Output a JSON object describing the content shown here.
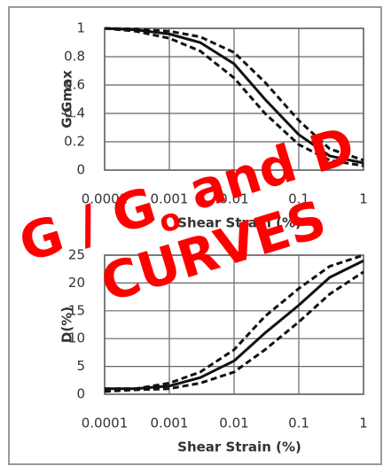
{
  "chart_data": [
    {
      "type": "line",
      "xscale": "log",
      "ylabel": "G/Gmax",
      "xlabel": "Shear Strain (%)",
      "x": [
        0.0001,
        0.0003,
        0.001,
        0.003,
        0.01,
        0.03,
        0.1,
        0.3,
        1
      ],
      "xlim": [
        0.0001,
        1
      ],
      "xticks": [
        0.0001,
        0.001,
        0.01,
        0.1,
        1
      ],
      "ylim": [
        0,
        1
      ],
      "yticks": [
        0,
        0.2,
        0.4,
        0.6,
        0.8,
        1
      ],
      "grid": true,
      "series": [
        {
          "color": "#111",
          "line_style": "dashed",
          "values": [
            1,
            0.995,
            0.98,
            0.94,
            0.83,
            0.62,
            0.35,
            0.15,
            0.07
          ]
        },
        {
          "color": "#111",
          "line_style": "solid",
          "values": [
            1,
            0.99,
            0.96,
            0.9,
            0.75,
            0.5,
            0.25,
            0.1,
            0.05
          ]
        },
        {
          "color": "#111",
          "line_style": "dashed",
          "values": [
            1,
            0.98,
            0.93,
            0.84,
            0.65,
            0.4,
            0.18,
            0.07,
            0.03
          ]
        }
      ]
    },
    {
      "type": "line",
      "xscale": "log",
      "ylabel": "D(%)",
      "xlabel": "Shear Strain (%)",
      "x": [
        0.0001,
        0.0003,
        0.001,
        0.003,
        0.01,
        0.03,
        0.1,
        0.3,
        1
      ],
      "xlim": [
        0.0001,
        1
      ],
      "xticks": [
        0.0001,
        0.001,
        0.01,
        0.1,
        1
      ],
      "ylim": [
        0,
        25
      ],
      "yticks": [
        0,
        5,
        10,
        15,
        20,
        25
      ],
      "grid": true,
      "series": [
        {
          "color": "#111",
          "line_style": "dashed",
          "values": [
            1,
            1,
            2,
            4,
            8,
            14,
            19,
            23,
            25
          ]
        },
        {
          "color": "#111",
          "line_style": "solid",
          "values": [
            1,
            1,
            1.5,
            3,
            6,
            11,
            16,
            21,
            24
          ]
        },
        {
          "color": "#111",
          "line_style": "dashed",
          "values": [
            0.5,
            0.8,
            1,
            2,
            4,
            8,
            13,
            18,
            22
          ]
        }
      ]
    }
  ],
  "overlay": {
    "line1": "G / G",
    "subscript": "o",
    "line1_end": " and D",
    "line2": "CURVES"
  }
}
